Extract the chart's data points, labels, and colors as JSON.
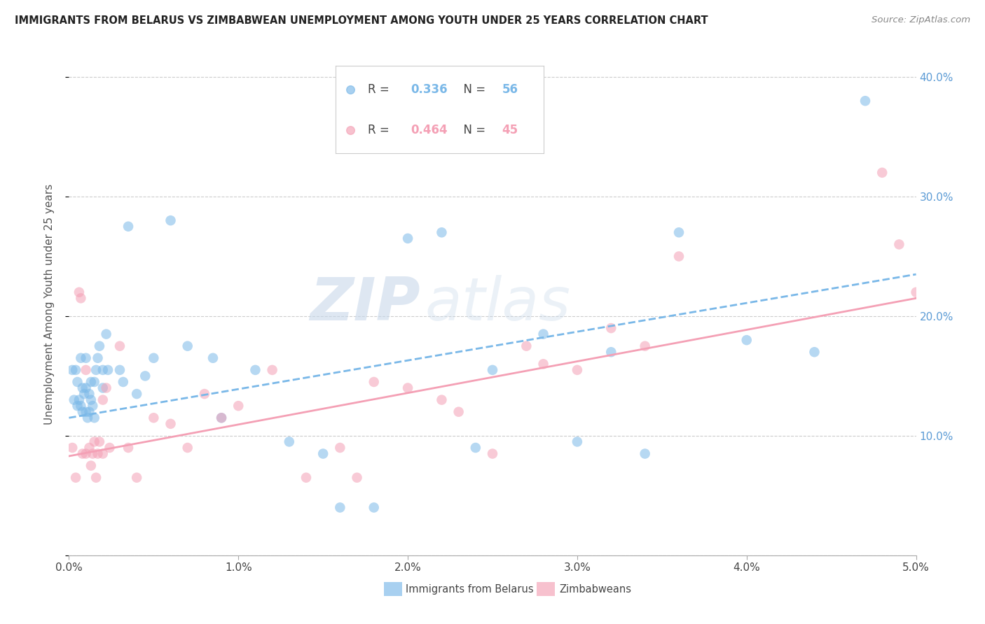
{
  "title": "IMMIGRANTS FROM BELARUS VS ZIMBABWEAN UNEMPLOYMENT AMONG YOUTH UNDER 25 YEARS CORRELATION CHART",
  "source": "Source: ZipAtlas.com",
  "ylabel": "Unemployment Among Youth under 25 years",
  "xlim": [
    0.0,
    0.05
  ],
  "ylim": [
    0.0,
    0.42
  ],
  "x_ticks": [
    0.0,
    0.01,
    0.02,
    0.03,
    0.04,
    0.05
  ],
  "x_tick_labels": [
    "0.0%",
    "1.0%",
    "2.0%",
    "3.0%",
    "4.0%",
    "5.0%"
  ],
  "y_ticks": [
    0.0,
    0.1,
    0.2,
    0.3,
    0.4
  ],
  "y_tick_labels": [
    "",
    "10.0%",
    "20.0%",
    "30.0%",
    "40.0%"
  ],
  "legend1_R": "0.336",
  "legend1_N": "56",
  "legend2_R": "0.464",
  "legend2_N": "45",
  "color_blue": "#7ab8e8",
  "color_pink": "#f4a0b5",
  "watermark_zip": "ZIP",
  "watermark_atlas": "atlas",
  "blue_scatter_x": [
    0.0002,
    0.0003,
    0.0004,
    0.0005,
    0.0005,
    0.0006,
    0.0007,
    0.0007,
    0.0008,
    0.0008,
    0.0009,
    0.001,
    0.001,
    0.001,
    0.0011,
    0.0012,
    0.0012,
    0.0013,
    0.0013,
    0.0014,
    0.0015,
    0.0015,
    0.0016,
    0.0017,
    0.0018,
    0.002,
    0.002,
    0.0022,
    0.0023,
    0.003,
    0.0032,
    0.0035,
    0.004,
    0.0045,
    0.005,
    0.006,
    0.007,
    0.0085,
    0.009,
    0.011,
    0.013,
    0.015,
    0.016,
    0.018,
    0.02,
    0.022,
    0.024,
    0.025,
    0.028,
    0.03,
    0.032,
    0.034,
    0.036,
    0.04,
    0.044,
    0.047
  ],
  "blue_scatter_y": [
    0.155,
    0.13,
    0.155,
    0.125,
    0.145,
    0.13,
    0.125,
    0.165,
    0.12,
    0.14,
    0.135,
    0.12,
    0.14,
    0.165,
    0.115,
    0.12,
    0.135,
    0.13,
    0.145,
    0.125,
    0.115,
    0.145,
    0.155,
    0.165,
    0.175,
    0.14,
    0.155,
    0.185,
    0.155,
    0.155,
    0.145,
    0.275,
    0.135,
    0.15,
    0.165,
    0.28,
    0.175,
    0.165,
    0.115,
    0.155,
    0.095,
    0.085,
    0.04,
    0.04,
    0.265,
    0.27,
    0.09,
    0.155,
    0.185,
    0.095,
    0.17,
    0.085,
    0.27,
    0.18,
    0.17,
    0.38
  ],
  "pink_scatter_x": [
    0.0002,
    0.0004,
    0.0006,
    0.0007,
    0.0008,
    0.001,
    0.001,
    0.0012,
    0.0013,
    0.0014,
    0.0015,
    0.0016,
    0.0017,
    0.0018,
    0.002,
    0.002,
    0.0022,
    0.0024,
    0.003,
    0.0035,
    0.004,
    0.005,
    0.006,
    0.007,
    0.008,
    0.009,
    0.01,
    0.012,
    0.014,
    0.016,
    0.017,
    0.018,
    0.02,
    0.022,
    0.023,
    0.025,
    0.027,
    0.028,
    0.03,
    0.032,
    0.034,
    0.036,
    0.048,
    0.049,
    0.05
  ],
  "pink_scatter_y": [
    0.09,
    0.065,
    0.22,
    0.215,
    0.085,
    0.085,
    0.155,
    0.09,
    0.075,
    0.085,
    0.095,
    0.065,
    0.085,
    0.095,
    0.13,
    0.085,
    0.14,
    0.09,
    0.175,
    0.09,
    0.065,
    0.115,
    0.11,
    0.09,
    0.135,
    0.115,
    0.125,
    0.155,
    0.065,
    0.09,
    0.065,
    0.145,
    0.14,
    0.13,
    0.12,
    0.085,
    0.175,
    0.16,
    0.155,
    0.19,
    0.175,
    0.25,
    0.32,
    0.26,
    0.22
  ],
  "blue_line_x": [
    0.0,
    0.05
  ],
  "blue_line_y": [
    0.115,
    0.235
  ],
  "pink_line_x": [
    0.0,
    0.05
  ],
  "pink_line_y": [
    0.083,
    0.215
  ]
}
